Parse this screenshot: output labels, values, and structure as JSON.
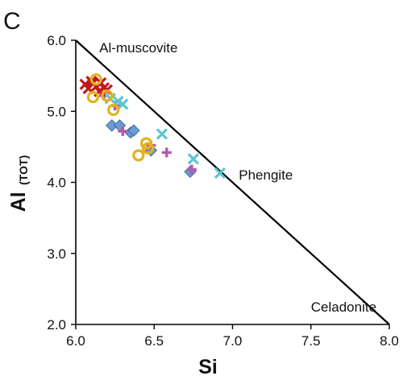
{
  "chart_data": {
    "type": "scatter",
    "panel_label": "C",
    "xlabel": "Si",
    "ylabel": "Al",
    "ylabel_sub": "(TOT)",
    "xlim": [
      6.0,
      8.0
    ],
    "ylim": [
      2.0,
      6.0
    ],
    "xticks": [
      "6.0",
      "6.5",
      "7.0",
      "7.5",
      "8.0"
    ],
    "yticks": [
      "2.0",
      "3.0",
      "4.0",
      "5.0",
      "6.0"
    ],
    "grid": false,
    "reference_line": {
      "from": [
        6.0,
        6.0
      ],
      "to": [
        8.0,
        2.0
      ]
    },
    "annotations": [
      {
        "text": "Al-muscovite",
        "x": 6.15,
        "y": 5.83
      },
      {
        "text": "Phengite",
        "x": 7.04,
        "y": 4.04
      },
      {
        "text": "Celadonite",
        "x": 7.5,
        "y": 2.18
      }
    ],
    "series": [
      {
        "marker": "x",
        "color": "#c0191e",
        "points": [
          [
            6.06,
            5.38
          ],
          [
            6.08,
            5.32
          ],
          [
            6.1,
            5.42
          ],
          [
            6.13,
            5.35
          ],
          [
            6.15,
            5.28
          ],
          [
            6.18,
            5.33
          ],
          [
            6.2,
            5.3
          ],
          [
            6.11,
            5.4
          ],
          [
            6.16,
            5.4
          ]
        ]
      },
      {
        "marker": "x",
        "color": "#5dc6d0",
        "points": [
          [
            6.22,
            5.18
          ],
          [
            6.27,
            5.14
          ],
          [
            6.3,
            5.1
          ],
          [
            6.55,
            4.68
          ],
          [
            6.75,
            4.33
          ],
          [
            6.92,
            4.13
          ]
        ]
      },
      {
        "marker": "plus",
        "color": "#b45aa8",
        "points": [
          [
            6.18,
            5.22
          ],
          [
            6.25,
            5.08
          ],
          [
            6.3,
            4.72
          ],
          [
            6.48,
            4.52
          ],
          [
            6.58,
            4.42
          ],
          [
            6.74,
            4.18
          ]
        ]
      },
      {
        "marker": "diamond",
        "color": "#6d9bd1",
        "points": [
          [
            6.23,
            4.8
          ],
          [
            6.28,
            4.8
          ],
          [
            6.35,
            4.7
          ],
          [
            6.37,
            4.73
          ],
          [
            6.48,
            4.45
          ],
          [
            6.73,
            4.15
          ]
        ]
      },
      {
        "marker": "circle",
        "color": "#e5b21b",
        "points": [
          [
            6.13,
            5.45
          ],
          [
            6.11,
            5.2
          ],
          [
            6.2,
            5.22
          ],
          [
            6.24,
            5.02
          ],
          [
            6.45,
            4.55
          ],
          [
            6.46,
            4.48
          ],
          [
            6.4,
            4.38
          ]
        ]
      }
    ]
  }
}
